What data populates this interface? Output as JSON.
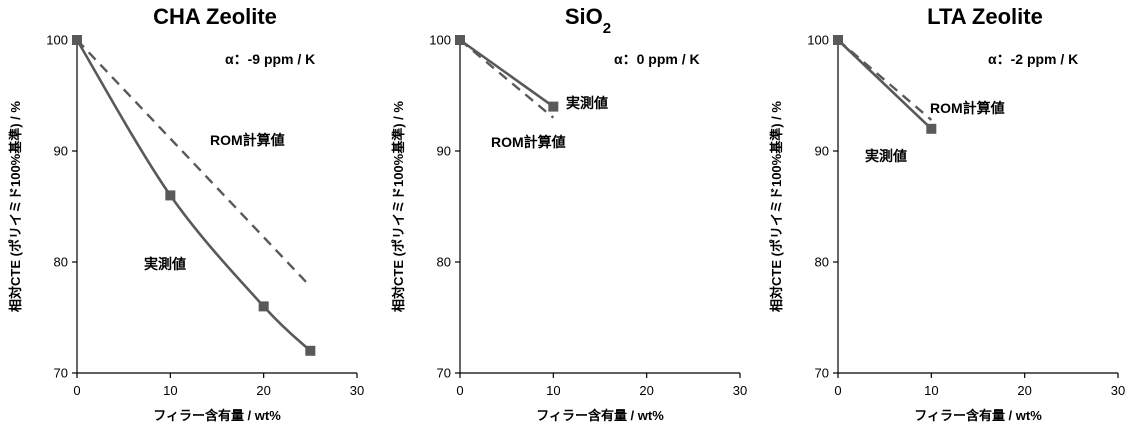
{
  "chart_data": [
    {
      "type": "line",
      "title": "CHA Zeolite",
      "title_sub": "",
      "xlabel": "フィラー含有量 / wt%",
      "ylabel": "相対CTE (ポリイミド100%基準) / %",
      "xlim": [
        0,
        30
      ],
      "ylim": [
        70,
        100
      ],
      "xticks": [
        0,
        10,
        20,
        30
      ],
      "yticks": [
        70,
        80,
        90,
        100
      ],
      "alpha_label": "α：-9 ppm / K",
      "series": [
        {
          "name": "実測値",
          "style": "solid-square",
          "x": [
            0,
            10,
            20,
            25
          ],
          "y": [
            100,
            86,
            76,
            72
          ]
        },
        {
          "name": "ROM計算値",
          "style": "dashed",
          "x": [
            0,
            25
          ],
          "y": [
            100,
            77.8
          ]
        }
      ]
    },
    {
      "type": "line",
      "title": "SiO",
      "title_sub": "2",
      "xlabel": "フィラー含有量 / wt%",
      "ylabel": "相対CTE (ポリイミド100%基準) / %",
      "xlim": [
        0,
        30
      ],
      "ylim": [
        70,
        100
      ],
      "xticks": [
        0,
        10,
        20,
        30
      ],
      "yticks": [
        70,
        80,
        90,
        100
      ],
      "alpha_label": "α：0 ppm / K",
      "series": [
        {
          "name": "実測値",
          "style": "solid-square",
          "x": [
            0,
            10
          ],
          "y": [
            100,
            94
          ]
        },
        {
          "name": "ROM計算値",
          "style": "dashed",
          "x": [
            0,
            10
          ],
          "y": [
            100,
            93
          ]
        }
      ]
    },
    {
      "type": "line",
      "title": "LTA Zeolite",
      "title_sub": "",
      "xlabel": "フィラー含有量 / wt%",
      "ylabel": "相対CTE (ポリイミド100%基準) / %",
      "xlim": [
        0,
        30
      ],
      "ylim": [
        70,
        100
      ],
      "xticks": [
        0,
        10,
        20,
        30
      ],
      "yticks": [
        70,
        80,
        90,
        100
      ],
      "alpha_label": "α：-2 ppm / K",
      "series": [
        {
          "name": "実測値",
          "style": "solid-square",
          "x": [
            0,
            10
          ],
          "y": [
            100,
            92
          ]
        },
        {
          "name": "ROM計算値",
          "style": "dashed",
          "x": [
            0,
            10
          ],
          "y": [
            100,
            92.8
          ]
        }
      ]
    }
  ],
  "colors": {
    "series": "#595959",
    "axis": "#000000",
    "background": "#ffffff"
  }
}
